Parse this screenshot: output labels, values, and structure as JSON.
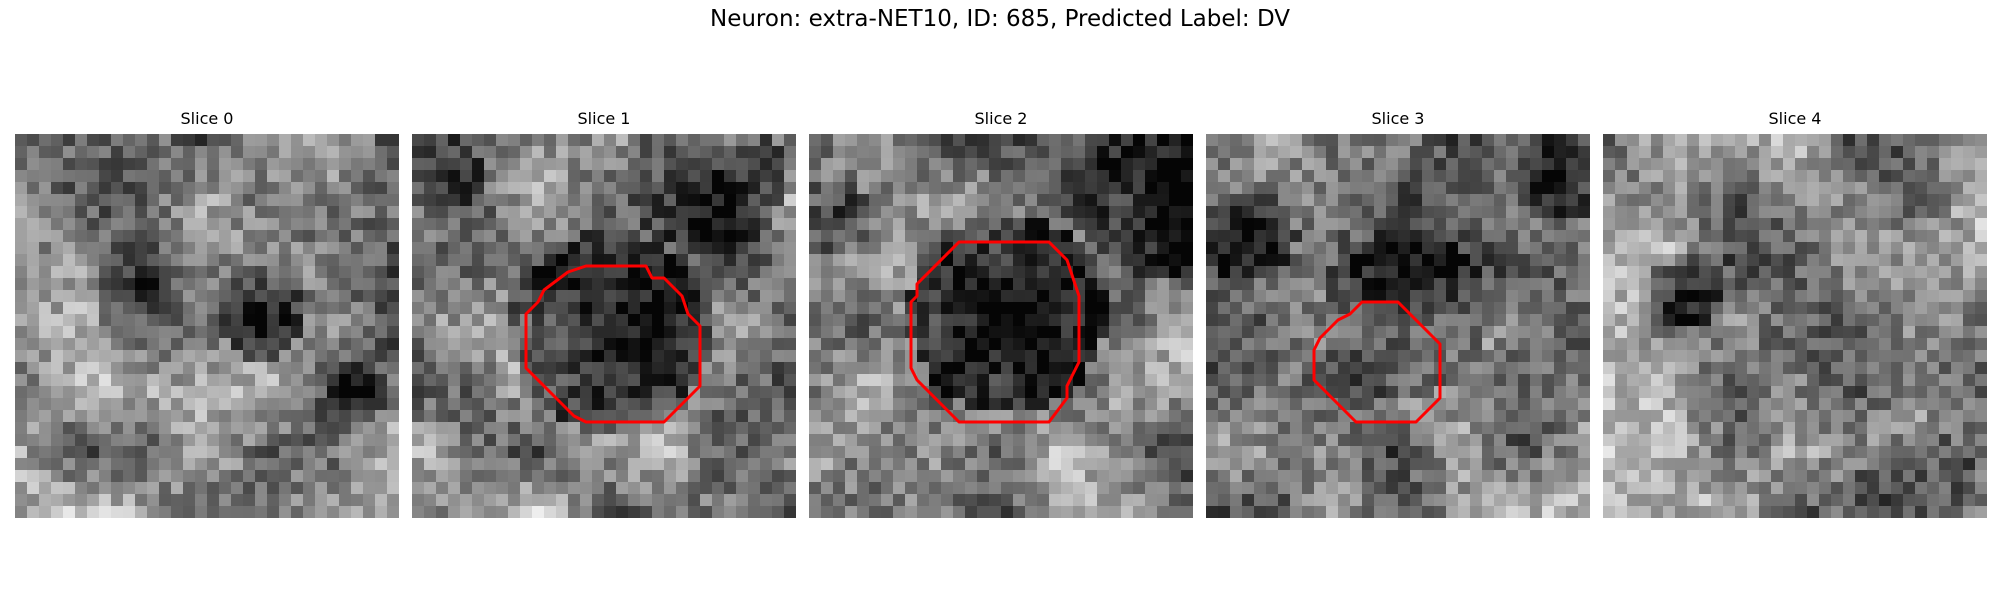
{
  "title": "Neuron: extra-NET10, ID: 685, Predicted Label: DV",
  "contour_color": "#ff0000",
  "slices": [
    {
      "label": "Slice 0",
      "has_contour": false
    },
    {
      "label": "Slice 1",
      "has_contour": true
    },
    {
      "label": "Slice 2",
      "has_contour": true
    },
    {
      "label": "Slice 3",
      "has_contour": true
    },
    {
      "label": "Slice 4",
      "has_contour": false
    }
  ]
}
